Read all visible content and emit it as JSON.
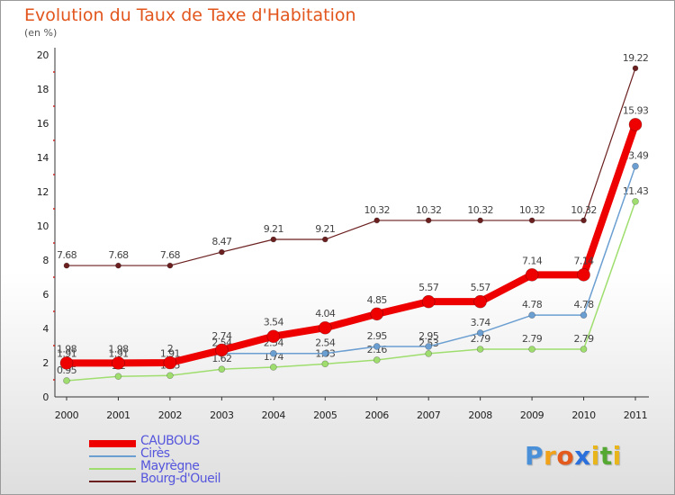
{
  "header": {
    "title": "Evolution du Taux de Taxe d'Habitation",
    "unit": "(en %)"
  },
  "logo": {
    "text": "Proxiti",
    "letters": [
      "P",
      "r",
      "o",
      "x",
      "i",
      "t",
      "i"
    ],
    "colors": [
      "#4a90d9",
      "#f2a218",
      "#e35a1c",
      "#2a6fdb",
      "#e8b51a",
      "#55a832",
      "#e8b51a"
    ]
  },
  "chart_data": {
    "type": "line",
    "title": "Evolution du Taux de Taxe d'Habitation",
    "ylabel": "(en %)",
    "xlabel": "",
    "x": [
      "2000",
      "2001",
      "2002",
      "2003",
      "2004",
      "2005",
      "2006",
      "2007",
      "2008",
      "2009",
      "2010",
      "2011"
    ],
    "ylim": [
      0,
      20
    ],
    "yticks": [
      "0",
      "2",
      "4",
      "6",
      "8",
      "10",
      "12",
      "14",
      "16",
      "18",
      "20"
    ],
    "grid": false,
    "legend_position": "bottom-left",
    "series": [
      {
        "name": "Bourg-d'Oueil",
        "color": "#6b1f1f",
        "width": 1.2,
        "radius": 3,
        "values": [
          7.68,
          7.68,
          7.68,
          8.47,
          9.21,
          9.21,
          10.32,
          10.32,
          10.32,
          10.32,
          10.32,
          19.22
        ],
        "labels": [
          "7.68",
          "7.68",
          "7.68",
          "8.47",
          "9.21",
          "9.21",
          "10.32",
          "10.32",
          "10.32",
          "10.32",
          "10.32",
          "19.22"
        ]
      },
      {
        "name": "Mayrègne",
        "color": "#9fde6e",
        "width": 1.5,
        "radius": 3.5,
        "values": [
          0.95,
          1.2,
          1.25,
          1.62,
          1.74,
          1.93,
          2.16,
          2.53,
          2.79,
          2.79,
          2.79,
          11.43
        ],
        "labels": [
          "0.95",
          "1.2",
          "1.25",
          "1.62",
          "1.74",
          "1.93",
          "2.16",
          "2.53",
          "2.79",
          "2.79",
          "2.79",
          "11.43"
        ]
      },
      {
        "name": "Cirès",
        "color": "#6b9ed1",
        "width": 1.5,
        "radius": 3.5,
        "values": [
          1.91,
          1.91,
          1.91,
          2.54,
          2.54,
          2.54,
          2.95,
          2.95,
          3.74,
          4.78,
          4.78,
          13.49
        ],
        "labels": [
          "1.91",
          "1.91",
          "1.91",
          "2.54",
          "2.54",
          "2.54",
          "2.95",
          "2.95",
          "3.74",
          "4.78",
          "4.78",
          "13.49"
        ]
      },
      {
        "name": "CAUBOUS",
        "color": "#ee0000",
        "width": 8,
        "radius": 7,
        "values": [
          1.98,
          1.98,
          2,
          2.74,
          3.54,
          4.04,
          4.85,
          5.57,
          5.57,
          7.14,
          7.14,
          15.93
        ],
        "labels": [
          "1.98",
          "1.98",
          "2",
          "2.74",
          "3.54",
          "4.04",
          "4.85",
          "5.57",
          "5.57",
          "7.14",
          "7.14",
          "15.93"
        ]
      }
    ]
  },
  "legend": {
    "items": [
      {
        "name": "CAUBOUS",
        "color": "#ee0000",
        "thickness": 8
      },
      {
        "name": "Cirès",
        "color": "#6b9ed1",
        "thickness": 2
      },
      {
        "name": "Mayrègne",
        "color": "#9fde6e",
        "thickness": 2
      },
      {
        "name": "Bourg-d'Oueil",
        "color": "#6b1f1f",
        "thickness": 2
      }
    ]
  }
}
